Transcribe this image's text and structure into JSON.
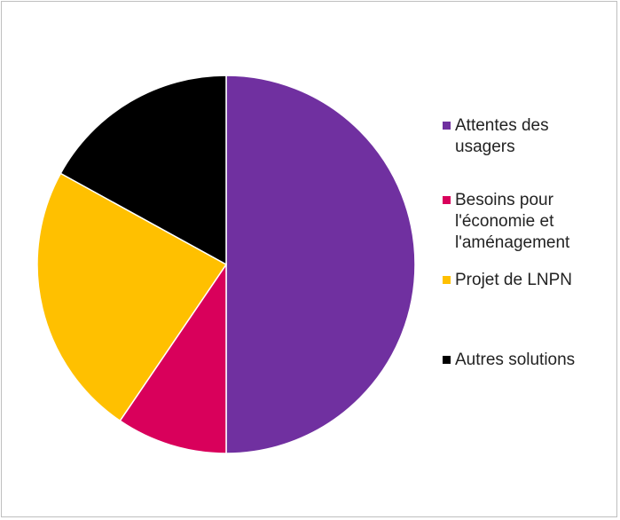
{
  "chart_data": {
    "type": "pie",
    "start_angle_deg": 0,
    "direction": "clockwise",
    "slices": [
      {
        "label": "Attentes des\nusagers",
        "value": 50,
        "color": "#7030a0"
      },
      {
        "label": "Besoins pour\nl'économie et\nl'aménagement",
        "value": 9.5,
        "color": "#d9005b"
      },
      {
        "label": "Projet de LNPN",
        "value": 23.5,
        "color": "#ffc000"
      },
      {
        "label": "Autres solutions",
        "value": 17,
        "color": "#000000"
      }
    ],
    "legend_position": "right"
  }
}
